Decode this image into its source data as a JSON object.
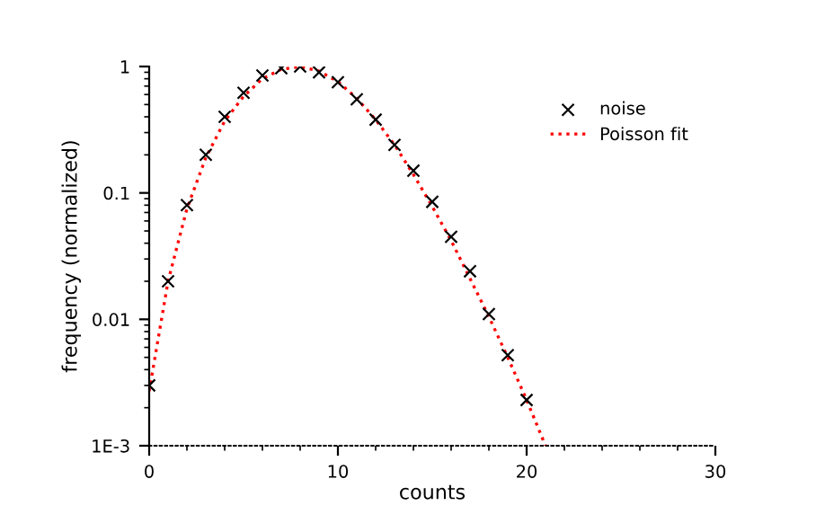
{
  "chart_data": {
    "type": "scatter",
    "xlabel": "counts",
    "ylabel": "frequency (normalized)",
    "log": "y",
    "xlim": [
      0,
      30
    ],
    "xticks": [
      0,
      10,
      20,
      30
    ],
    "ylim": [
      0.001,
      1
    ],
    "yticks": [
      {
        "value": 0.001,
        "label": "1E-3"
      },
      0.01,
      0.1,
      1
    ],
    "legend": "top right",
    "grid": false,
    "series": [
      {
        "name": "noise",
        "marker": "cross",
        "color": "#000000",
        "x": [
          0,
          1,
          2,
          3,
          4,
          5,
          6,
          7,
          8,
          9,
          10,
          11,
          12,
          13,
          14,
          15,
          16,
          17,
          18,
          19,
          20
        ],
        "values": [
          0.003,
          0.02,
          0.08,
          0.2,
          0.4,
          0.62,
          0.85,
          0.97,
          1.0,
          0.9,
          0.75,
          0.55,
          0.38,
          0.24,
          0.15,
          0.085,
          0.045,
          0.024,
          0.011,
          0.0052,
          0.0023
        ]
      },
      {
        "name": "Poisson fit",
        "type": "line",
        "color": "#ff0000",
        "line_style": "dotted",
        "marker": "none",
        "x": [
          0,
          1,
          2,
          3,
          4,
          5,
          6,
          7,
          8,
          9,
          10,
          11,
          12,
          13,
          14,
          15,
          16,
          17,
          18,
          19,
          20,
          21
        ],
        "values": [
          0.0027,
          0.02,
          0.075,
          0.19,
          0.37,
          0.58,
          0.8,
          0.95,
          1.0,
          0.92,
          0.76,
          0.56,
          0.38,
          0.24,
          0.14,
          0.078,
          0.042,
          0.021,
          0.0105,
          0.005,
          0.0023,
          0.001
        ]
      }
    ]
  }
}
